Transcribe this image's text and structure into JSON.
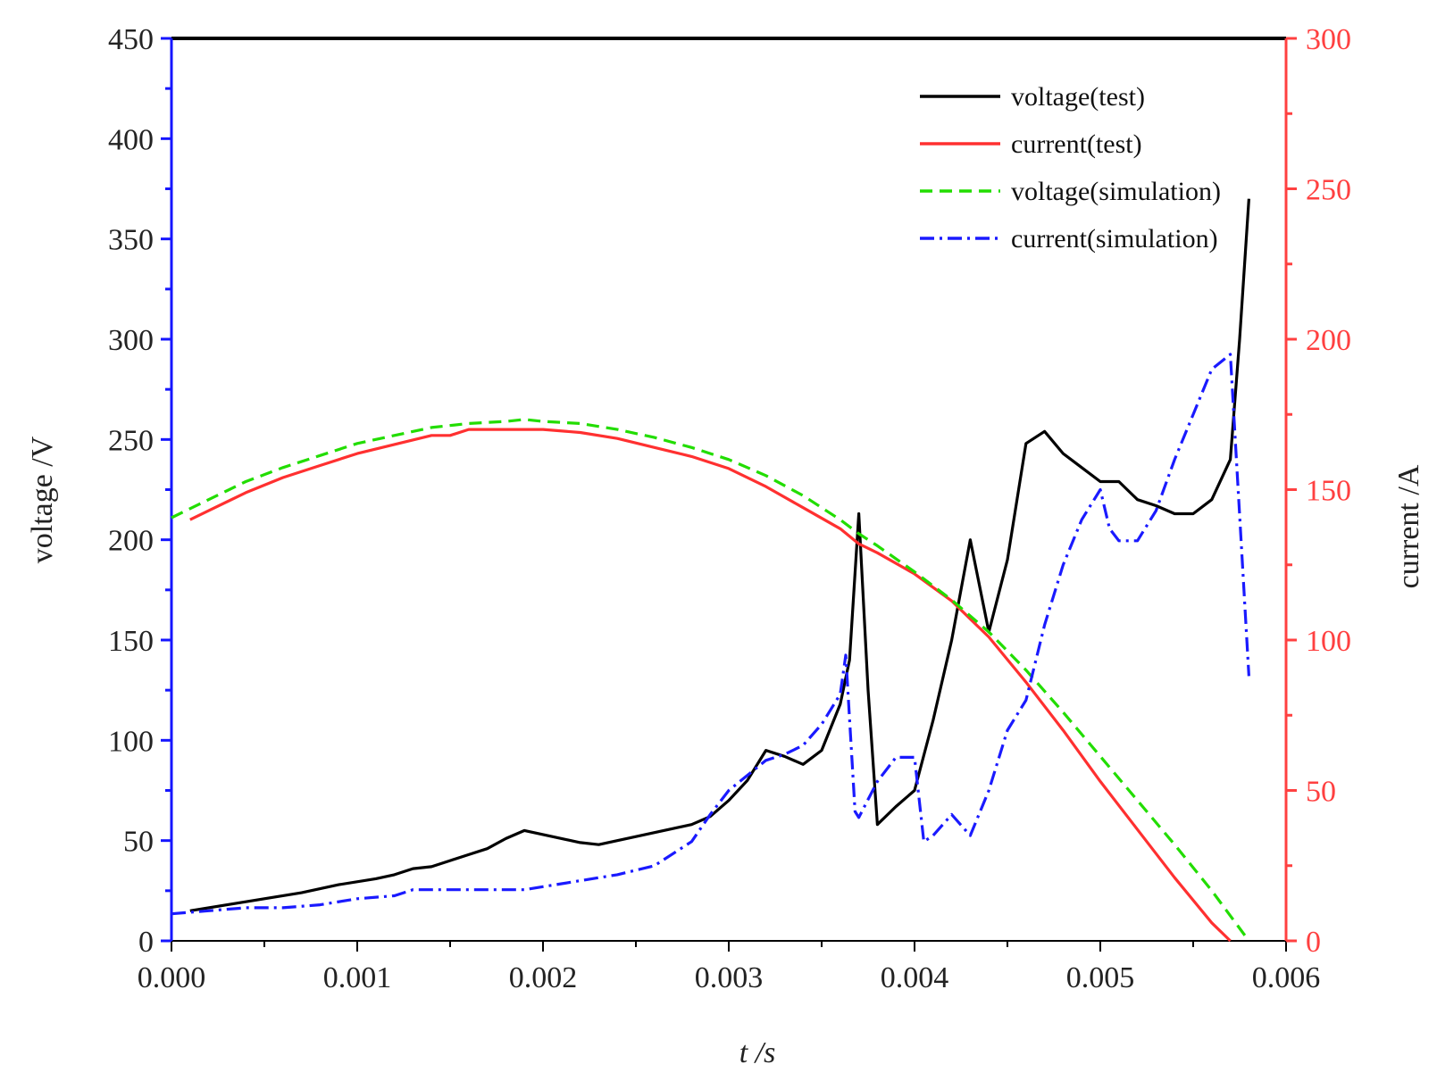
{
  "chart_data": {
    "type": "line",
    "title": "",
    "xlabel": "t /s",
    "ylabel_left": "voltage /V",
    "ylabel_right": "current /A",
    "xlim": [
      0,
      0.006
    ],
    "ylim_left": [
      0,
      450
    ],
    "ylim_right": [
      0,
      300
    ],
    "x_ticks": [
      0,
      0.001,
      0.002,
      0.003,
      0.004,
      0.005,
      0.006
    ],
    "x_tick_labels": [
      "0.000",
      "0.001",
      "0.002",
      "0.003",
      "0.004",
      "0.005",
      "0.006"
    ],
    "y_left_ticks": [
      0,
      50,
      100,
      150,
      200,
      250,
      300,
      350,
      400,
      450
    ],
    "y_left_tick_labels": [
      "0",
      "50",
      "100",
      "150",
      "200",
      "250",
      "300",
      "350",
      "400",
      "450"
    ],
    "y_right_ticks": [
      0,
      50,
      100,
      150,
      200,
      250,
      300
    ],
    "y_right_tick_labels": [
      "0",
      "50",
      "100",
      "150",
      "200",
      "250",
      "300"
    ],
    "grid": false,
    "legend_position": "top-right",
    "colors": {
      "left_axis": "#1515ff",
      "right_axis": "#ff4040",
      "voltage_test": "#000000",
      "current_test": "#ff3030",
      "voltage_simulation": "#22dd00",
      "current_simulation": "#1a1aff"
    },
    "series": [
      {
        "name": "voltage(test)",
        "axis": "left",
        "style": "solid",
        "color": "#000000",
        "x": [
          0.0001,
          0.0003,
          0.0005,
          0.0007,
          0.0009,
          0.0011,
          0.0012,
          0.0013,
          0.0014,
          0.0015,
          0.0016,
          0.0017,
          0.0018,
          0.0019,
          0.002,
          0.0021,
          0.0022,
          0.0023,
          0.0024,
          0.0025,
          0.0026,
          0.0027,
          0.0028,
          0.0029,
          0.003,
          0.0031,
          0.0032,
          0.0033,
          0.0034,
          0.0035,
          0.0036,
          0.00365,
          0.0037,
          0.00375,
          0.0038,
          0.0039,
          0.004,
          0.0041,
          0.0042,
          0.0043,
          0.0044,
          0.0045,
          0.0046,
          0.0047,
          0.0048,
          0.0049,
          0.005,
          0.0051,
          0.0052,
          0.0053,
          0.0054,
          0.0055,
          0.0056,
          0.0057,
          0.00575,
          0.0058
        ],
        "values": [
          15,
          18,
          21,
          24,
          28,
          31,
          33,
          36,
          37,
          40,
          43,
          46,
          51,
          55,
          53,
          51,
          49,
          48,
          50,
          52,
          54,
          56,
          58,
          62,
          70,
          80,
          95,
          92,
          88,
          95,
          118,
          140,
          213,
          125,
          58,
          67,
          75,
          110,
          150,
          200,
          154,
          190,
          248,
          254,
          243,
          236,
          229,
          229,
          220,
          217,
          213,
          213,
          220,
          240,
          300,
          370
        ]
      },
      {
        "name": "current(test)",
        "axis": "right",
        "style": "solid",
        "color": "#ff3030",
        "x": [
          0.0001,
          0.0002,
          0.0004,
          0.0006,
          0.0008,
          0.001,
          0.0012,
          0.0014,
          0.0015,
          0.0016,
          0.0018,
          0.002,
          0.0022,
          0.0024,
          0.0026,
          0.0028,
          0.003,
          0.0032,
          0.0034,
          0.0036,
          0.0037,
          0.0038,
          0.004,
          0.0042,
          0.0044,
          0.0046,
          0.0048,
          0.005,
          0.0052,
          0.0054,
          0.0056,
          0.0057
        ],
        "values": [
          140,
          143,
          149,
          154,
          158,
          162,
          165,
          168,
          168,
          170,
          170,
          170,
          169,
          167,
          164,
          161,
          157,
          151,
          144,
          137,
          132,
          129,
          122,
          113,
          101,
          86,
          70,
          53,
          37,
          21,
          6,
          0
        ]
      },
      {
        "name": "voltage(simulation)",
        "axis": "left",
        "style": "dash",
        "color": "#22dd00",
        "x": [
          0.0,
          0.0002,
          0.0004,
          0.0006,
          0.0008,
          0.001,
          0.0012,
          0.0014,
          0.0016,
          0.0018,
          0.0019,
          0.002,
          0.0022,
          0.0024,
          0.0026,
          0.0028,
          0.003,
          0.0032,
          0.0034,
          0.0036,
          0.0037,
          0.0038,
          0.004,
          0.0042,
          0.0044,
          0.0046,
          0.0048,
          0.005,
          0.0052,
          0.0054,
          0.0056,
          0.0058
        ],
        "values": [
          211,
          220,
          229,
          236,
          242,
          248,
          252,
          256,
          258,
          259,
          260,
          259,
          258,
          255,
          251,
          246,
          240,
          232,
          222,
          210,
          203,
          197,
          184,
          170,
          154,
          135,
          114,
          92,
          70,
          48,
          25,
          0
        ]
      },
      {
        "name": "current(simulation)",
        "axis": "right",
        "style": "dashdot",
        "color": "#1a1aff",
        "x": [
          0.0,
          0.0002,
          0.0004,
          0.0006,
          0.0008,
          0.001,
          0.0012,
          0.0013,
          0.0014,
          0.0016,
          0.0018,
          0.0019,
          0.002,
          0.0021,
          0.0022,
          0.0024,
          0.0026,
          0.0028,
          0.0029,
          0.003,
          0.0031,
          0.0032,
          0.0033,
          0.0034,
          0.0035,
          0.0036,
          0.00363,
          0.00368,
          0.0037,
          0.0038,
          0.0039,
          0.004,
          0.00405,
          0.0041,
          0.0042,
          0.0043,
          0.0044,
          0.0045,
          0.0046,
          0.0047,
          0.0048,
          0.0049,
          0.005,
          0.00505,
          0.0051,
          0.0052,
          0.0053,
          0.0054,
          0.0055,
          0.0056,
          0.0057,
          0.0058
        ],
        "values": [
          9,
          10,
          11,
          11,
          12,
          14,
          15,
          17,
          17,
          17,
          17,
          17,
          18,
          19,
          20,
          22,
          25,
          33,
          42,
          50,
          55,
          60,
          62,
          65,
          72,
          82,
          95,
          43,
          41,
          53,
          61,
          61,
          33,
          35,
          42,
          35,
          50,
          70,
          80,
          105,
          125,
          140,
          150,
          137,
          133,
          133,
          143,
          160,
          175,
          190,
          195,
          88
        ]
      }
    ]
  }
}
